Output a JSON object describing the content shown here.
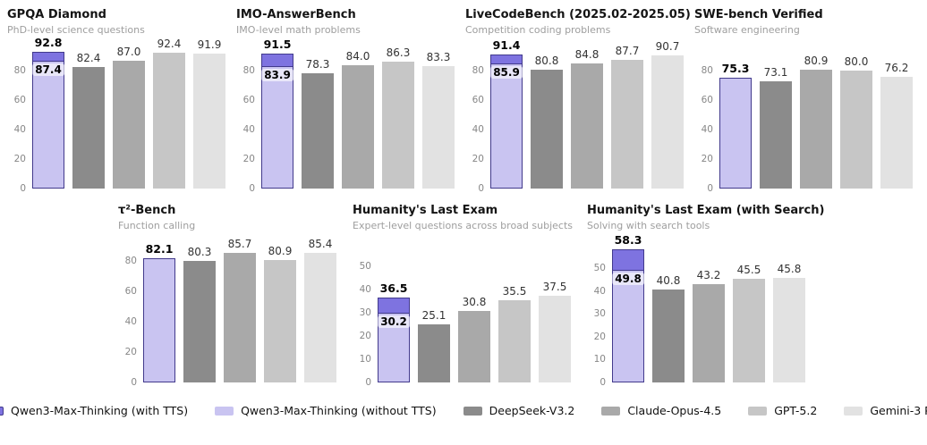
{
  "colors": {
    "qwen_cap": "#7e73e0",
    "qwen_body": "#c9c4f1",
    "qwen_edge": "#423a8c",
    "bar_grays": [
      "#8b8b8b",
      "#a9a9a9",
      "#c6c6c6",
      "#e2e2e2"
    ],
    "title": "#141414",
    "subtitle": "#9e9e9e",
    "tick": "#878787"
  },
  "legend": [
    {
      "label": "Qwen3-Max-Thinking (with TTS)",
      "color": "#7e73e0",
      "border": "#423a8c"
    },
    {
      "label": "Qwen3-Max-Thinking (without TTS)",
      "color": "#c9c4f1",
      "border": "#a39bе0"
    },
    {
      "label": "DeepSeek-V3.2",
      "color": "#8b8b8b",
      "border": ""
    },
    {
      "label": "Claude-Opus-4.5",
      "color": "#a9a9a9",
      "border": ""
    },
    {
      "label": "GPT-5.2",
      "color": "#c6c6c6",
      "border": ""
    },
    {
      "label": "Gemini-3 Pro",
      "color": "#e2e2e2",
      "border": ""
    }
  ],
  "chart_data": [
    {
      "type": "bar",
      "title": "GPQA Diamond",
      "subtitle": "PhD-level science questions",
      "row": "top",
      "ylim": [
        0,
        96
      ],
      "yticks": [
        0,
        20,
        40,
        60,
        80
      ],
      "qwen": {
        "with_tts": 92.8,
        "with_tts_label": "92.8",
        "without_tts": 87.4,
        "without_tts_label": "87.4"
      },
      "bars": [
        {
          "name": "DeepSeek-V3.2",
          "value": 82.4,
          "label": "82.4"
        },
        {
          "name": "Claude-Opus-4.5",
          "value": 87.0,
          "label": "87.0"
        },
        {
          "name": "GPT-5.2",
          "value": 92.4,
          "label": "92.4"
        },
        {
          "name": "Gemini-3 Pro",
          "value": 91.9,
          "label": "91.9"
        }
      ]
    },
    {
      "type": "bar",
      "title": "IMO-AnswerBench",
      "subtitle": "IMO-level math problems",
      "row": "top",
      "ylim": [
        0,
        96
      ],
      "yticks": [
        0,
        20,
        40,
        60,
        80
      ],
      "qwen": {
        "with_tts": 91.5,
        "with_tts_label": "91.5",
        "without_tts": 83.9,
        "without_tts_label": "83.9"
      },
      "bars": [
        {
          "name": "DeepSeek-V3.2",
          "value": 78.3,
          "label": "78.3"
        },
        {
          "name": "Claude-Opus-4.5",
          "value": 84.0,
          "label": "84.0"
        },
        {
          "name": "GPT-5.2",
          "value": 86.3,
          "label": "86.3"
        },
        {
          "name": "Gemini-3 Pro",
          "value": 83.3,
          "label": "83.3"
        }
      ]
    },
    {
      "type": "bar",
      "title": "LiveCodeBench (2025.02-2025.05)",
      "subtitle": "Competition coding problems",
      "row": "top",
      "ylim": [
        0,
        96
      ],
      "yticks": [
        0,
        20,
        40,
        60,
        80
      ],
      "qwen": {
        "with_tts": 91.4,
        "with_tts_label": "91.4",
        "without_tts": 85.9,
        "without_tts_label": "85.9"
      },
      "bars": [
        {
          "name": "DeepSeek-V3.2",
          "value": 80.8,
          "label": "80.8"
        },
        {
          "name": "Claude-Opus-4.5",
          "value": 84.8,
          "label": "84.8"
        },
        {
          "name": "GPT-5.2",
          "value": 87.7,
          "label": "87.7"
        },
        {
          "name": "Gemini-3 Pro",
          "value": 90.7,
          "label": "90.7"
        }
      ]
    },
    {
      "type": "bar",
      "title": "SWE-bench Verified",
      "subtitle": "Software engineering",
      "row": "top",
      "ylim": [
        0,
        96
      ],
      "yticks": [
        0,
        20,
        40,
        60,
        80
      ],
      "qwen": {
        "with_tts": null,
        "with_tts_label": "",
        "without_tts": 75.3,
        "without_tts_label": "75.3"
      },
      "bars": [
        {
          "name": "DeepSeek-V3.2",
          "value": 73.1,
          "label": "73.1"
        },
        {
          "name": "Claude-Opus-4.5",
          "value": 80.9,
          "label": "80.9"
        },
        {
          "name": "GPT-5.2",
          "value": 80.0,
          "label": "80.0"
        },
        {
          "name": "Gemini-3 Pro",
          "value": 76.2,
          "label": "76.2"
        }
      ]
    },
    {
      "type": "bar",
      "title": "τ²-Bench",
      "subtitle": "Function calling",
      "row": "bottom",
      "ylim": [
        0,
        92
      ],
      "yticks": [
        0,
        20,
        40,
        60,
        80
      ],
      "qwen": {
        "with_tts": null,
        "with_tts_label": "",
        "without_tts": 82.1,
        "without_tts_label": "82.1"
      },
      "bars": [
        {
          "name": "DeepSeek-V3.2",
          "value": 80.3,
          "label": "80.3"
        },
        {
          "name": "Claude-Opus-4.5",
          "value": 85.7,
          "label": "85.7"
        },
        {
          "name": "GPT-5.2",
          "value": 80.9,
          "label": "80.9"
        },
        {
          "name": "Gemini-3 Pro",
          "value": 85.4,
          "label": "85.4"
        }
      ]
    },
    {
      "type": "bar",
      "title": "Humanity's Last Exam",
      "subtitle": "Expert-level questions across broad subjects",
      "row": "bottom",
      "ylim": [
        0,
        60
      ],
      "yticks": [
        0,
        10,
        20,
        30,
        40,
        50
      ],
      "qwen": {
        "with_tts": 36.5,
        "with_tts_label": "36.5",
        "without_tts": 30.2,
        "without_tts_label": "30.2"
      },
      "bars": [
        {
          "name": "DeepSeek-V3.2",
          "value": 25.1,
          "label": "25.1"
        },
        {
          "name": "Claude-Opus-4.5",
          "value": 30.8,
          "label": "30.8"
        },
        {
          "name": "GPT-5.2",
          "value": 35.5,
          "label": "35.5"
        },
        {
          "name": "Gemini-3 Pro",
          "value": 37.5,
          "label": "37.5"
        }
      ]
    },
    {
      "type": "bar",
      "title": "Humanity's Last Exam (with Search)",
      "subtitle": "Solving with search tools",
      "row": "bottom",
      "ylim": [
        0,
        61
      ],
      "yticks": [
        0,
        10,
        20,
        30,
        40,
        50
      ],
      "qwen": {
        "with_tts": 58.3,
        "with_tts_label": "58.3",
        "without_tts": 49.8,
        "without_tts_label": "49.8"
      },
      "bars": [
        {
          "name": "DeepSeek-V3.2",
          "value": 40.8,
          "label": "40.8"
        },
        {
          "name": "Claude-Opus-4.5",
          "value": 43.2,
          "label": "43.2"
        },
        {
          "name": "GPT-5.2",
          "value": 45.5,
          "label": "45.5"
        },
        {
          "name": "Gemini-3 Pro",
          "value": 45.8,
          "label": "45.8"
        }
      ]
    }
  ]
}
